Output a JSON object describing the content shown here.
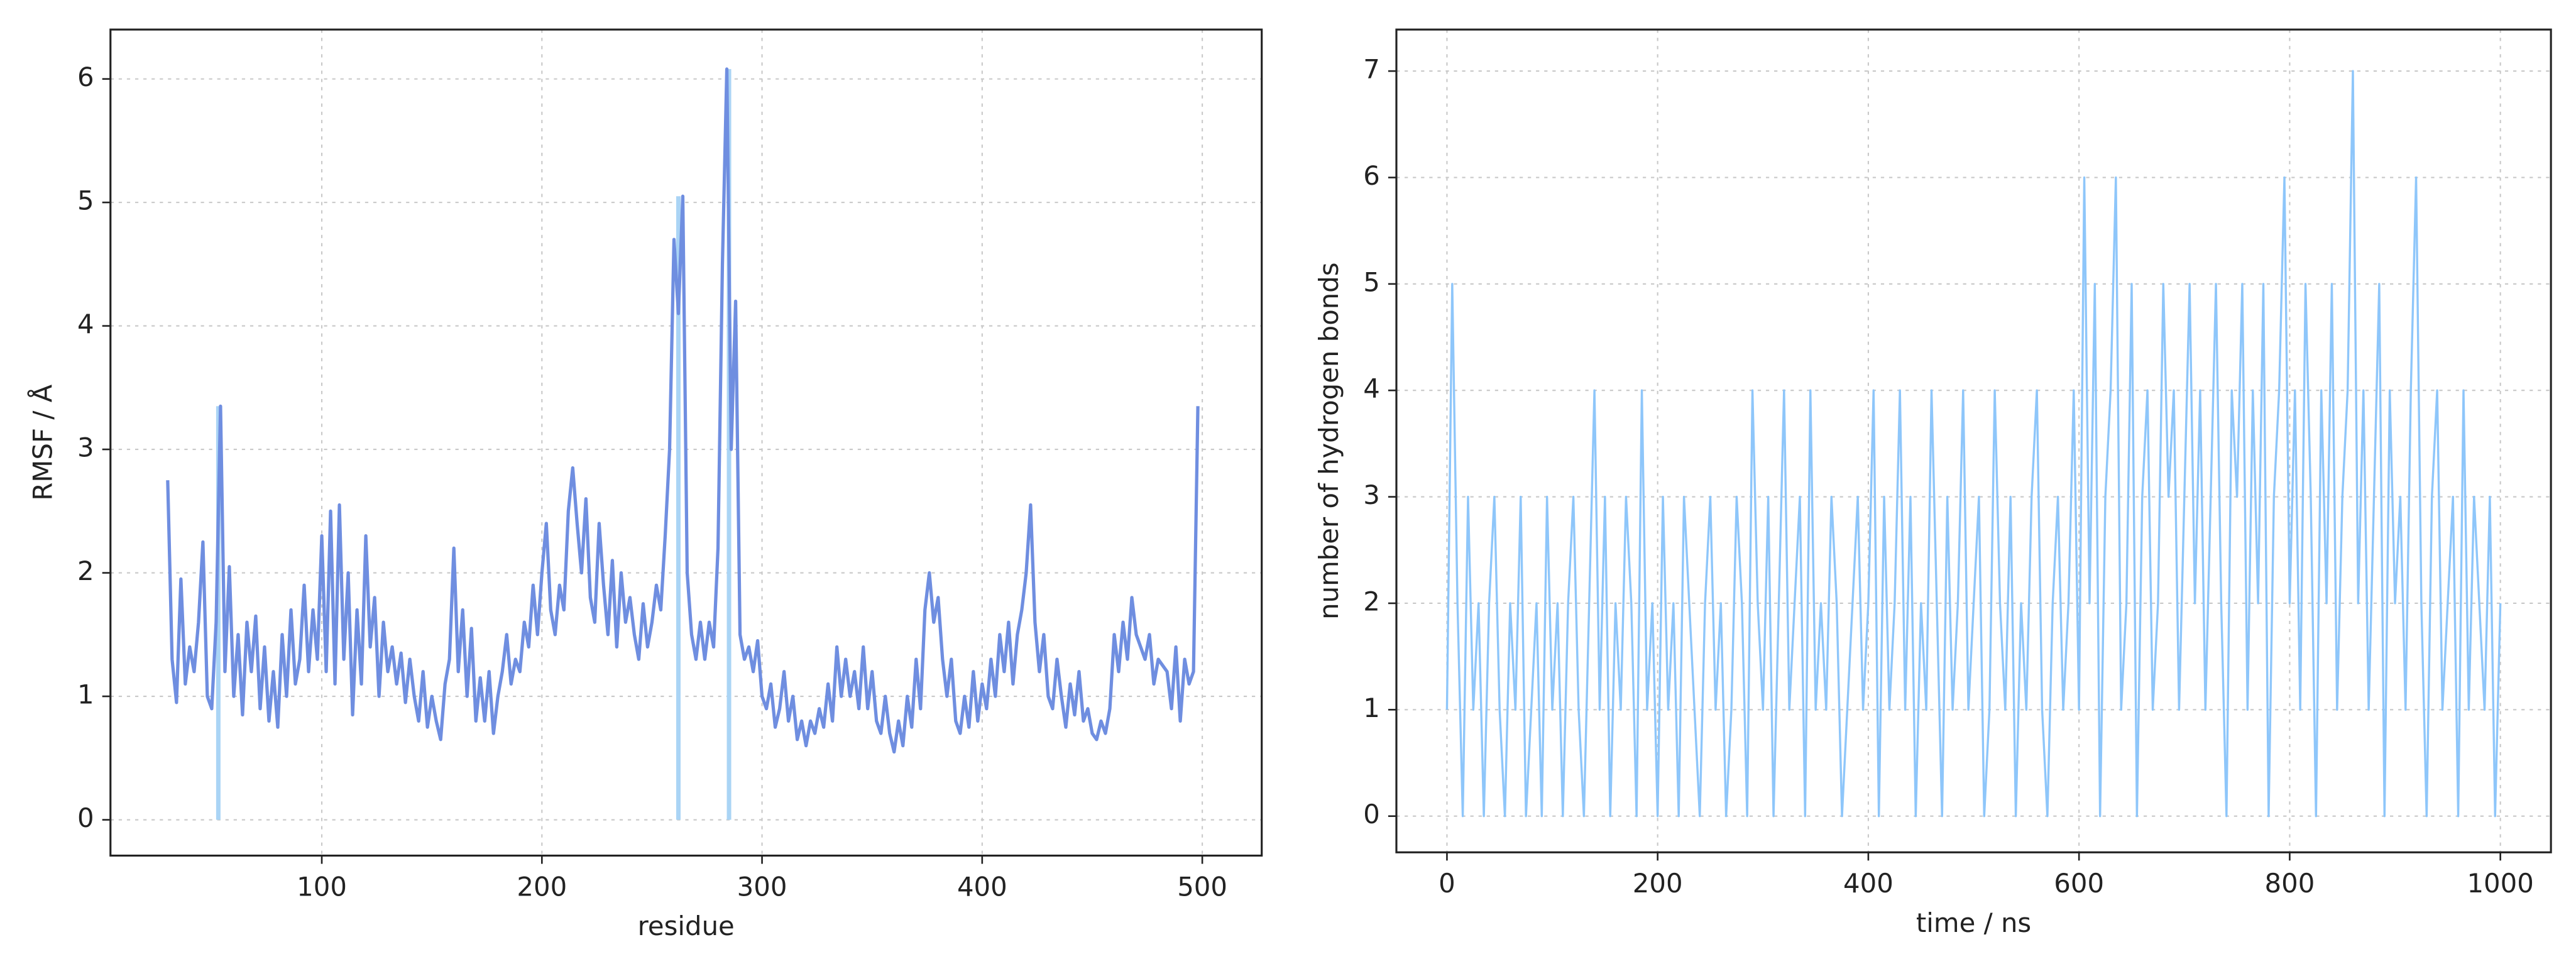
{
  "chart_data": [
    {
      "type": "line",
      "xlabel": "residue",
      "ylabel": "RMSF / Å",
      "xlim": [
        4,
        527
      ],
      "ylim": [
        -0.29,
        6.4
      ],
      "xticks": [
        100,
        200,
        300,
        400,
        500
      ],
      "yticks": [
        0,
        1,
        2,
        3,
        4,
        5,
        6
      ],
      "grid": true,
      "x": [
        30,
        32,
        34,
        36,
        38,
        40,
        42,
        44,
        46,
        48,
        50,
        52,
        54,
        56,
        58,
        60,
        62,
        64,
        66,
        68,
        70,
        72,
        74,
        76,
        78,
        80,
        82,
        84,
        86,
        88,
        90,
        92,
        94,
        96,
        98,
        100,
        102,
        104,
        106,
        108,
        110,
        112,
        114,
        116,
        118,
        120,
        122,
        124,
        126,
        128,
        130,
        132,
        134,
        136,
        138,
        140,
        142,
        144,
        146,
        148,
        150,
        152,
        154,
        156,
        158,
        160,
        162,
        164,
        166,
        168,
        170,
        172,
        174,
        176,
        178,
        180,
        182,
        184,
        186,
        188,
        190,
        192,
        194,
        196,
        198,
        200,
        202,
        204,
        206,
        208,
        210,
        212,
        214,
        216,
        218,
        220,
        222,
        224,
        226,
        228,
        230,
        232,
        234,
        236,
        238,
        240,
        242,
        244,
        246,
        248,
        250,
        252,
        254,
        256,
        258,
        260,
        262,
        264,
        266,
        268,
        270,
        272,
        274,
        276,
        278,
        280,
        282,
        284,
        286,
        288,
        290,
        292,
        294,
        296,
        298,
        300,
        302,
        304,
        306,
        308,
        310,
        312,
        314,
        316,
        318,
        320,
        322,
        324,
        326,
        328,
        330,
        332,
        334,
        336,
        338,
        340,
        342,
        344,
        346,
        348,
        350,
        352,
        354,
        356,
        358,
        360,
        362,
        364,
        366,
        368,
        370,
        372,
        374,
        376,
        378,
        380,
        382,
        384,
        386,
        388,
        390,
        392,
        394,
        396,
        398,
        400,
        402,
        404,
        406,
        408,
        410,
        412,
        414,
        416,
        418,
        420,
        422,
        424,
        426,
        428,
        430,
        432,
        434,
        436,
        438,
        440,
        442,
        444,
        446,
        448,
        450,
        452,
        454,
        456,
        458,
        460,
        462,
        464,
        466,
        468,
        470,
        472,
        474,
        476,
        478,
        480,
        482,
        484,
        486,
        488,
        490,
        492,
        494,
        496,
        498
      ],
      "series": [
        {
          "color": "#6f8ee0",
          "values": [
            2.75,
            1.3,
            0.95,
            1.95,
            1.1,
            1.4,
            1.2,
            1.6,
            2.25,
            1.0,
            0.9,
            1.6,
            3.35,
            1.2,
            2.05,
            1.0,
            1.5,
            0.85,
            1.6,
            1.2,
            1.65,
            0.9,
            1.4,
            0.8,
            1.2,
            0.75,
            1.5,
            1.0,
            1.7,
            1.1,
            1.3,
            1.9,
            1.2,
            1.7,
            1.3,
            2.3,
            1.2,
            2.5,
            1.1,
            2.55,
            1.3,
            2.0,
            0.85,
            1.7,
            1.1,
            2.3,
            1.4,
            1.8,
            1.0,
            1.6,
            1.2,
            1.4,
            1.1,
            1.35,
            0.95,
            1.3,
            1.0,
            0.8,
            1.2,
            0.75,
            1.0,
            0.8,
            0.65,
            1.1,
            1.3,
            2.2,
            1.2,
            1.7,
            1.0,
            1.55,
            0.8,
            1.15,
            0.8,
            1.2,
            0.7,
            1.0,
            1.2,
            1.5,
            1.1,
            1.3,
            1.2,
            1.6,
            1.4,
            1.9,
            1.5,
            2.0,
            2.4,
            1.7,
            1.5,
            1.9,
            1.7,
            2.5,
            2.85,
            2.4,
            2.0,
            2.6,
            1.8,
            1.6,
            2.4,
            1.9,
            1.5,
            2.1,
            1.4,
            2.0,
            1.6,
            1.8,
            1.5,
            1.3,
            1.75,
            1.4,
            1.6,
            1.9,
            1.7,
            2.3,
            3.0,
            4.7,
            4.1,
            5.05,
            2.0,
            1.5,
            1.3,
            1.6,
            1.3,
            1.6,
            1.4,
            2.2,
            4.5,
            6.08,
            3.0,
            4.2,
            1.5,
            1.3,
            1.4,
            1.2,
            1.45,
            1.0,
            0.9,
            1.1,
            0.75,
            0.9,
            1.2,
            0.8,
            1.0,
            0.65,
            0.8,
            0.6,
            0.8,
            0.7,
            0.9,
            0.75,
            1.1,
            0.8,
            1.4,
            1.0,
            1.3,
            1.0,
            1.2,
            0.9,
            1.4,
            0.9,
            1.2,
            0.8,
            0.7,
            1.0,
            0.7,
            0.55,
            0.8,
            0.6,
            1.0,
            0.75,
            1.3,
            0.9,
            1.7,
            2.0,
            1.6,
            1.8,
            1.3,
            1.0,
            1.3,
            0.8,
            0.7,
            1.0,
            0.75,
            1.2,
            0.8,
            1.1,
            0.9,
            1.3,
            1.0,
            1.5,
            1.2,
            1.6,
            1.1,
            1.5,
            1.7,
            2.0,
            2.55,
            1.6,
            1.2,
            1.5,
            1.0,
            0.9,
            1.3,
            1.0,
            0.75,
            1.1,
            0.85,
            1.2,
            0.8,
            0.9,
            0.7,
            0.65,
            0.8,
            0.7,
            0.9,
            1.5,
            1.2,
            1.6,
            1.3,
            1.8,
            1.5,
            1.4,
            1.3,
            1.5,
            1.1,
            1.3,
            1.25,
            1.2,
            0.9,
            1.4,
            0.8,
            1.3,
            1.1,
            1.2,
            3.35
          ]
        }
      ],
      "highlights": {
        "color": "#aad4f5",
        "x": [
          53,
          262,
          285
        ],
        "values": [
          3.35,
          5.05,
          6.08
        ]
      }
    },
    {
      "type": "line",
      "xlabel": "time / ns",
      "ylabel": "number of hydrogen bonds",
      "xlim": [
        -48,
        1048
      ],
      "ylim": [
        -0.34,
        7.39
      ],
      "xticks": [
        0,
        200,
        400,
        600,
        800,
        1000
      ],
      "yticks": [
        0,
        1,
        2,
        3,
        4,
        5,
        6,
        7
      ],
      "grid": true,
      "x": [
        0,
        5,
        10,
        15,
        20,
        25,
        30,
        35,
        40,
        45,
        50,
        55,
        60,
        65,
        70,
        75,
        80,
        85,
        90,
        95,
        100,
        105,
        110,
        115,
        120,
        125,
        130,
        135,
        140,
        145,
        150,
        155,
        160,
        165,
        170,
        175,
        180,
        185,
        190,
        195,
        200,
        205,
        210,
        215,
        220,
        225,
        230,
        235,
        240,
        245,
        250,
        255,
        260,
        265,
        270,
        275,
        280,
        285,
        290,
        295,
        300,
        305,
        310,
        315,
        320,
        325,
        330,
        335,
        340,
        345,
        350,
        355,
        360,
        365,
        370,
        375,
        380,
        385,
        390,
        395,
        400,
        405,
        410,
        415,
        420,
        425,
        430,
        435,
        440,
        445,
        450,
        455,
        460,
        465,
        470,
        475,
        480,
        485,
        490,
        495,
        500,
        505,
        510,
        515,
        520,
        525,
        530,
        535,
        540,
        545,
        550,
        555,
        560,
        565,
        570,
        575,
        580,
        585,
        590,
        595,
        600,
        605,
        610,
        615,
        620,
        625,
        630,
        635,
        640,
        645,
        650,
        655,
        660,
        665,
        670,
        675,
        680,
        685,
        690,
        695,
        700,
        705,
        710,
        715,
        720,
        725,
        730,
        735,
        740,
        745,
        750,
        755,
        760,
        765,
        770,
        775,
        780,
        785,
        790,
        795,
        800,
        805,
        810,
        815,
        820,
        825,
        830,
        835,
        840,
        845,
        850,
        855,
        860,
        865,
        870,
        875,
        880,
        885,
        890,
        895,
        900,
        905,
        910,
        915,
        920,
        925,
        930,
        935,
        940,
        945,
        950,
        955,
        960,
        965,
        970,
        975,
        980,
        985,
        990,
        995,
        1000
      ],
      "series": [
        {
          "color": "#8ec6fa",
          "values": [
            1,
            5,
            2,
            0,
            3,
            1,
            2,
            0,
            2,
            3,
            1,
            0,
            2,
            1,
            3,
            0,
            1,
            2,
            0,
            3,
            1,
            2,
            0,
            2,
            3,
            1,
            0,
            2,
            4,
            1,
            3,
            0,
            2,
            1,
            3,
            2,
            0,
            4,
            1,
            2,
            0,
            3,
            1,
            2,
            0,
            3,
            2,
            1,
            0,
            2,
            3,
            1,
            2,
            0,
            1,
            3,
            2,
            0,
            4,
            2,
            1,
            3,
            0,
            2,
            4,
            1,
            2,
            3,
            0,
            4,
            1,
            2,
            1,
            3,
            2,
            0,
            1,
            2,
            3,
            1,
            2,
            4,
            0,
            3,
            1,
            2,
            4,
            1,
            3,
            0,
            2,
            1,
            4,
            2,
            0,
            3,
            1,
            2,
            4,
            1,
            2,
            3,
            0,
            1,
            4,
            2,
            1,
            3,
            0,
            2,
            1,
            3,
            4,
            1,
            0,
            2,
            3,
            1,
            2,
            4,
            1,
            6,
            2,
            5,
            0,
            3,
            4,
            6,
            1,
            2,
            5,
            0,
            3,
            4,
            1,
            2,
            5,
            3,
            4,
            1,
            3,
            5,
            2,
            4,
            1,
            3,
            5,
            2,
            0,
            4,
            3,
            5,
            1,
            4,
            2,
            5,
            0,
            3,
            4,
            6,
            2,
            4,
            1,
            5,
            3,
            0,
            4,
            2,
            5,
            1,
            3,
            4,
            7,
            2,
            4,
            1,
            3,
            5,
            0,
            4,
            2,
            3,
            1,
            4,
            6,
            2,
            0,
            3,
            4,
            1,
            2,
            3,
            0,
            4,
            1,
            3,
            2,
            1,
            3,
            0,
            2
          ]
        }
      ]
    }
  ]
}
